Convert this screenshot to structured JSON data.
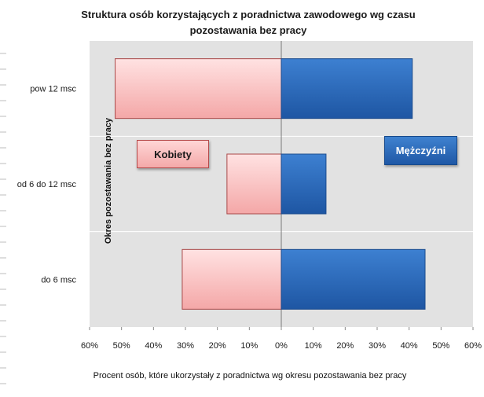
{
  "chart_data": {
    "type": "bar",
    "orientation": "horizontal",
    "title": "Struktura osób korzystających z poradnictwa zawodowego wg czasu pozostawania bez pracy",
    "xlabel": "Procent osób, które ukorzystały z poradnictwa wg okresu pozostawania bez pracy",
    "ylabel": "Okres pozostawania bez pracy",
    "categories": [
      "pow 12 msc",
      "od 6 do 12 msc",
      "do 6 msc"
    ],
    "series": [
      {
        "name": "Kobiety",
        "side": "left",
        "color": "#f6b8b8",
        "values": [
          52,
          17,
          31
        ]
      },
      {
        "name": "Mężczyźni",
        "side": "right",
        "color": "#2e6fc0",
        "values": [
          41,
          14,
          45
        ]
      }
    ],
    "xlim": [
      -60,
      60
    ],
    "x_ticks": [
      "60%",
      "50%",
      "40%",
      "30%",
      "20%",
      "10%",
      "0%",
      "10%",
      "20%",
      "30%",
      "40%",
      "50%",
      "60%"
    ],
    "grid": true
  },
  "legend": {
    "women": "Kobiety",
    "men": "Mężczyźni"
  }
}
